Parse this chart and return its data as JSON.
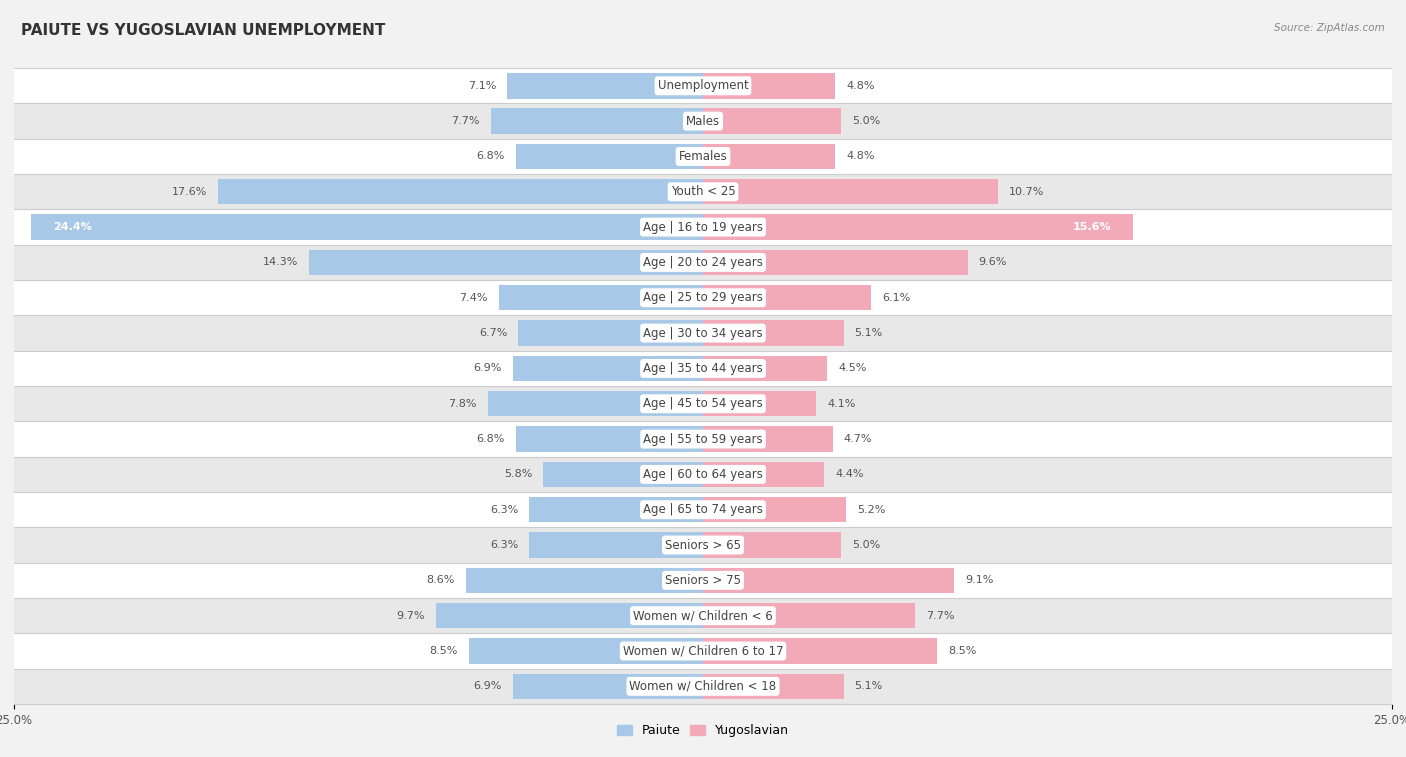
{
  "title": "PAIUTE VS YUGOSLAVIAN UNEMPLOYMENT",
  "source": "Source: ZipAtlas.com",
  "categories": [
    "Unemployment",
    "Males",
    "Females",
    "Youth < 25",
    "Age | 16 to 19 years",
    "Age | 20 to 24 years",
    "Age | 25 to 29 years",
    "Age | 30 to 34 years",
    "Age | 35 to 44 years",
    "Age | 45 to 54 years",
    "Age | 55 to 59 years",
    "Age | 60 to 64 years",
    "Age | 65 to 74 years",
    "Seniors > 65",
    "Seniors > 75",
    "Women w/ Children < 6",
    "Women w/ Children 6 to 17",
    "Women w/ Children < 18"
  ],
  "paiute_values": [
    7.1,
    7.7,
    6.8,
    17.6,
    24.4,
    14.3,
    7.4,
    6.7,
    6.9,
    7.8,
    6.8,
    5.8,
    6.3,
    6.3,
    8.6,
    9.7,
    8.5,
    6.9
  ],
  "yugoslav_values": [
    4.8,
    5.0,
    4.8,
    10.7,
    15.6,
    9.6,
    6.1,
    5.1,
    4.5,
    4.1,
    4.7,
    4.4,
    5.2,
    5.0,
    9.1,
    7.7,
    8.5,
    5.1
  ],
  "paiute_color": "#a8c8e8",
  "yugoslav_color": "#f2aab8",
  "axis_limit": 25.0,
  "bar_height": 0.72,
  "background_color": "#f2f2f2",
  "row_color_light": "#ffffff",
  "row_color_dark": "#e8e8e8",
  "divider_color": "#cccccc",
  "title_fontsize": 11,
  "label_fontsize": 8.5,
  "value_fontsize": 8,
  "legend_fontsize": 9,
  "title_color": "#333333",
  "source_color": "#888888",
  "value_color": "#555555",
  "label_color": "#444444"
}
